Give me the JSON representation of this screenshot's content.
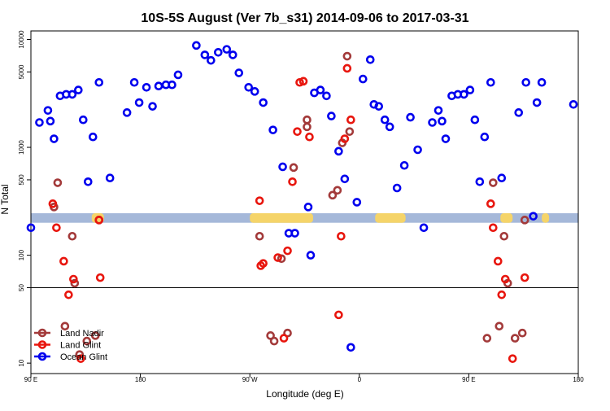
{
  "chart_data": {
    "type": "scatter",
    "title": "10S-5S August (Ver 7b_s31)   2014-09-06 to 2017-03-31",
    "xlabel": "Longitude (deg E)",
    "ylabel": "N Total",
    "y_scale": "log",
    "xlim": [
      90,
      540
    ],
    "ylim": [
      8,
      12000
    ],
    "x_ticks": [
      {
        "value": 90,
        "label": "90 E"
      },
      {
        "value": 180,
        "label": "180"
      },
      {
        "value": 270,
        "label": "90 W"
      },
      {
        "value": 360,
        "label": "0"
      },
      {
        "value": 450,
        "label": "90 E"
      },
      {
        "value": 540,
        "label": "180"
      }
    ],
    "y_ticks": [
      {
        "value": 10,
        "label": "10"
      },
      {
        "value": 50,
        "label": "50"
      },
      {
        "value": 100,
        "label": "100"
      },
      {
        "value": 500,
        "label": "500"
      },
      {
        "value": 1000,
        "label": "1000"
      },
      {
        "value": 5000,
        "label": "5000"
      },
      {
        "value": 10000,
        "label": "10000"
      }
    ],
    "reference_line": 50,
    "band": {
      "ymin": 200,
      "ymax": 245,
      "color": "#a5b8d9"
    },
    "land_patches": [
      {
        "x1": 140,
        "x2": 150,
        "color": "#f5d469"
      },
      {
        "x1": 270,
        "x2": 322,
        "color": "#f5d469"
      },
      {
        "x1": 373,
        "x2": 398,
        "color": "#f5d469"
      },
      {
        "x1": 476,
        "x2": 486,
        "color": "#f5d469"
      },
      {
        "x1": 510,
        "x2": 516,
        "color": "#f5d469"
      }
    ],
    "legend_position": "bottom-left",
    "series": [
      {
        "name": "Land Nadir",
        "color": "#a33a3a",
        "points": [
          [
            112,
            470
          ],
          [
            109,
            280
          ],
          [
            124,
            150
          ],
          [
            126,
            55
          ],
          [
            118,
            22
          ],
          [
            130,
            12
          ],
          [
            136,
            16
          ],
          [
            143,
            18
          ],
          [
            146,
            212
          ],
          [
            278,
            150
          ],
          [
            287,
            18
          ],
          [
            290,
            16
          ],
          [
            296,
            93
          ],
          [
            301,
            19
          ],
          [
            306,
            650
          ],
          [
            317,
            1800
          ],
          [
            317,
            1550
          ],
          [
            338,
            360
          ],
          [
            342,
            400
          ],
          [
            346,
            1100
          ],
          [
            350,
            7000
          ],
          [
            352,
            1400
          ],
          [
            465,
            17
          ],
          [
            470,
            470
          ],
          [
            475,
            22
          ],
          [
            479,
            150
          ],
          [
            482,
            55
          ],
          [
            488,
            17
          ],
          [
            494,
            19
          ],
          [
            496,
            212
          ]
        ]
      },
      {
        "name": "Land Glint",
        "color": "#e8160e",
        "points": [
          [
            108,
            300
          ],
          [
            111,
            180
          ],
          [
            117,
            88
          ],
          [
            121,
            43
          ],
          [
            125,
            60
          ],
          [
            131,
            11
          ],
          [
            146,
            212
          ],
          [
            147,
            62
          ],
          [
            278,
            320
          ],
          [
            279,
            80
          ],
          [
            281,
            84
          ],
          [
            293,
            95
          ],
          [
            298,
            17
          ],
          [
            301,
            110
          ],
          [
            305,
            480
          ],
          [
            309,
            1400
          ],
          [
            311,
            4000
          ],
          [
            314,
            4100
          ],
          [
            319,
            1250
          ],
          [
            343,
            28
          ],
          [
            345,
            150
          ],
          [
            348,
            1200
          ],
          [
            350,
            5400
          ],
          [
            353,
            1800
          ],
          [
            468,
            300
          ],
          [
            470,
            180
          ],
          [
            474,
            88
          ],
          [
            477,
            43
          ],
          [
            480,
            60
          ],
          [
            486,
            11
          ],
          [
            496,
            62
          ]
        ]
      },
      {
        "name": "Ocean Glint",
        "color": "#0000ee",
        "points": [
          [
            90,
            180
          ],
          [
            97,
            1700
          ],
          [
            104,
            2200
          ],
          [
            106,
            1750
          ],
          [
            109,
            1200
          ],
          [
            114,
            3000
          ],
          [
            119,
            3100
          ],
          [
            124,
            3100
          ],
          [
            129,
            3400
          ],
          [
            133,
            1800
          ],
          [
            137,
            480
          ],
          [
            141,
            1250
          ],
          [
            146,
            4000
          ],
          [
            155,
            520
          ],
          [
            169,
            2100
          ],
          [
            175,
            4000
          ],
          [
            179,
            2600
          ],
          [
            185,
            3600
          ],
          [
            190,
            2400
          ],
          [
            195,
            3700
          ],
          [
            201,
            3800
          ],
          [
            206,
            3800
          ],
          [
            211,
            4700
          ],
          [
            226,
            8800
          ],
          [
            233,
            7200
          ],
          [
            238,
            6400
          ],
          [
            244,
            7600
          ],
          [
            251,
            8100
          ],
          [
            256,
            7200
          ],
          [
            261,
            4900
          ],
          [
            269,
            3600
          ],
          [
            274,
            3300
          ],
          [
            281,
            2600
          ],
          [
            289,
            1450
          ],
          [
            297,
            660
          ],
          [
            302,
            160
          ],
          [
            307,
            160
          ],
          [
            318,
            280
          ],
          [
            320,
            100
          ],
          [
            323,
            3200
          ],
          [
            328,
            3400
          ],
          [
            333,
            3000
          ],
          [
            337,
            1950
          ],
          [
            343,
            920
          ],
          [
            348,
            510
          ],
          [
            353,
            14
          ],
          [
            358,
            310
          ],
          [
            363,
            4300
          ],
          [
            369,
            6500
          ],
          [
            372,
            2500
          ],
          [
            376,
            2400
          ],
          [
            381,
            1800
          ],
          [
            385,
            1550
          ],
          [
            391,
            420
          ],
          [
            397,
            680
          ],
          [
            402,
            1900
          ],
          [
            408,
            950
          ],
          [
            413,
            180
          ],
          [
            420,
            1700
          ],
          [
            425,
            2200
          ],
          [
            428,
            1750
          ],
          [
            431,
            1200
          ],
          [
            436,
            3000
          ],
          [
            441,
            3100
          ],
          [
            446,
            3100
          ],
          [
            451,
            3400
          ],
          [
            455,
            1800
          ],
          [
            459,
            480
          ],
          [
            463,
            1250
          ],
          [
            468,
            4000
          ],
          [
            477,
            520
          ],
          [
            491,
            2100
          ],
          [
            497,
            4000
          ],
          [
            503,
            230
          ],
          [
            506,
            2600
          ],
          [
            510,
            4000
          ],
          [
            536,
            2500
          ]
        ]
      }
    ]
  }
}
